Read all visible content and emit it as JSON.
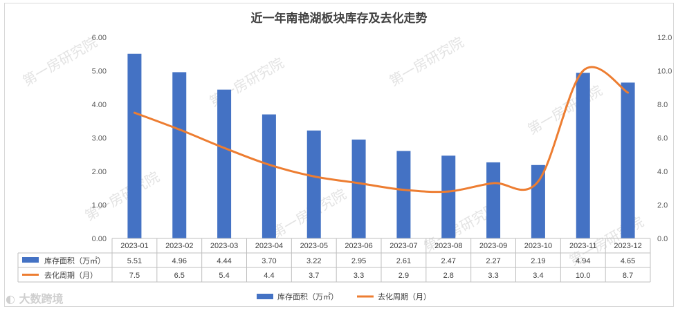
{
  "chart_data": {
    "type": "bar",
    "title": "近一年南艳湖板块库存及去化走势",
    "categories": [
      "2023-01",
      "2023-02",
      "2023-03",
      "2023-04",
      "2023-05",
      "2023-06",
      "2023-07",
      "2023-08",
      "2023-09",
      "2023-10",
      "2023-11",
      "2023-12"
    ],
    "series": [
      {
        "name": "库存面积（万㎡）",
        "kind": "bar",
        "axis": "left",
        "color": "#4472c4",
        "values": [
          5.51,
          4.96,
          4.44,
          3.7,
          3.22,
          2.95,
          2.61,
          2.47,
          2.27,
          2.19,
          4.94,
          4.65
        ],
        "labels": [
          "5.51",
          "4.96",
          "4.44",
          "3.70",
          "3.22",
          "2.95",
          "2.61",
          "2.47",
          "2.27",
          "2.19",
          "4.94",
          "4.65"
        ]
      },
      {
        "name": "去化周期（月）",
        "kind": "line",
        "axis": "right",
        "color": "#ed7d31",
        "values": [
          7.5,
          6.5,
          5.4,
          4.4,
          3.7,
          3.3,
          2.9,
          2.8,
          3.3,
          3.4,
          10.0,
          8.7
        ],
        "labels": [
          "7.5",
          "6.5",
          "5.4",
          "4.4",
          "3.7",
          "3.3",
          "2.9",
          "2.8",
          "3.3",
          "3.4",
          "10.0",
          "8.7"
        ]
      }
    ],
    "y_left": {
      "min": 0,
      "max": 6,
      "ticks": [
        "0.00",
        "1.00",
        "2.00",
        "3.00",
        "4.00",
        "5.00",
        "6.00"
      ]
    },
    "y_right": {
      "min": 0,
      "max": 12,
      "ticks": [
        "0.0",
        "2.0",
        "4.0",
        "6.0",
        "8.0",
        "10.0",
        "12.0"
      ]
    },
    "grid": false,
    "legend": "bottom",
    "data_table": true
  },
  "watermark": "第一房研究院",
  "corner_watermark": "大数跨境"
}
